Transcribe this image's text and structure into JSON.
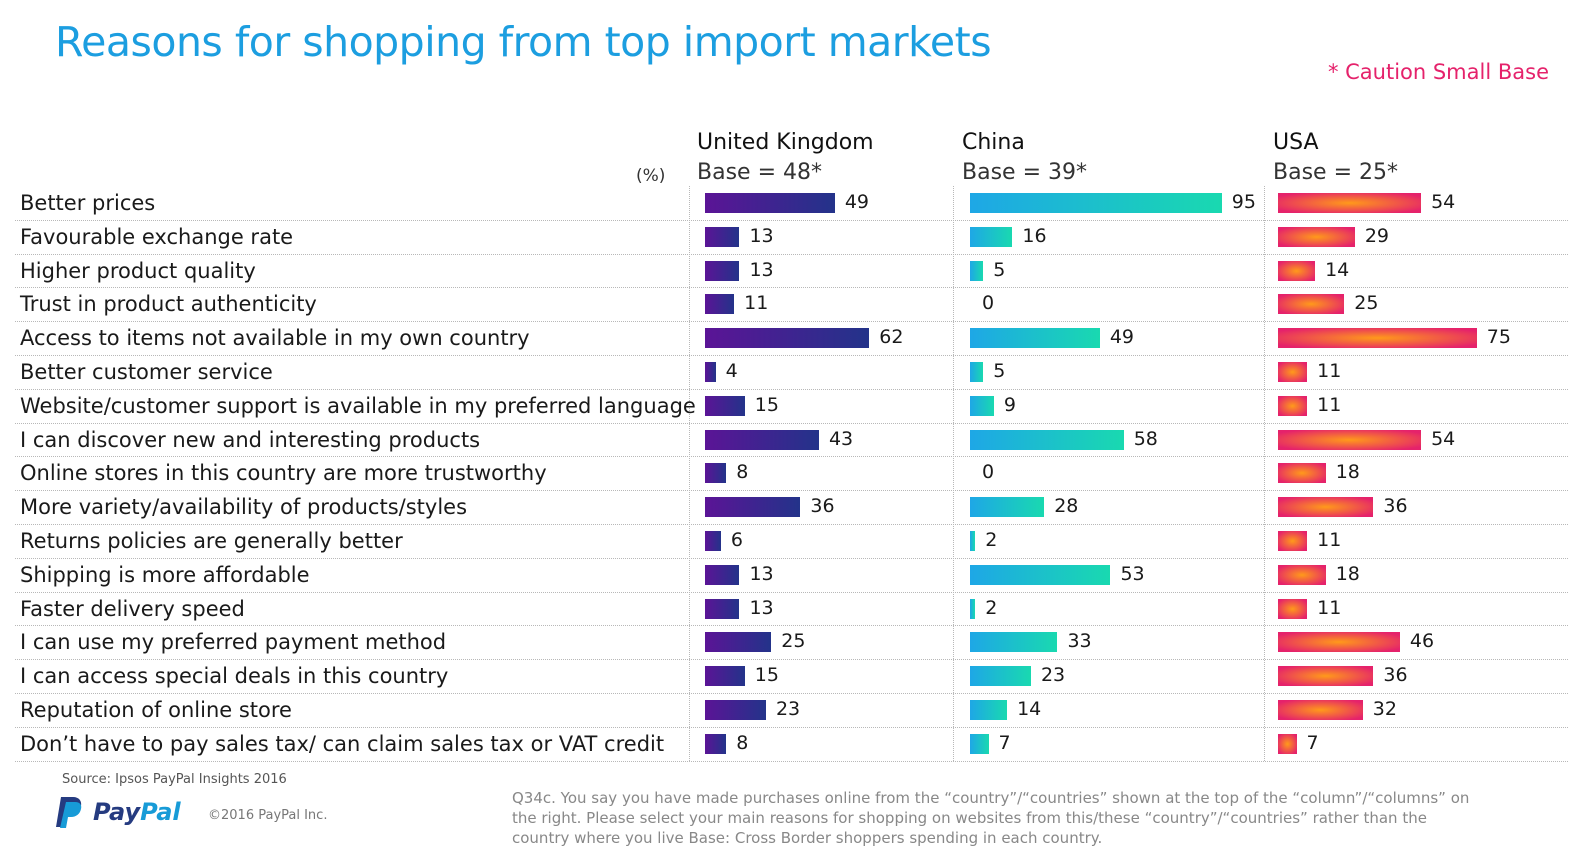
{
  "title": "Reasons for shopping from top import markets",
  "caution": "* Caution Small Base",
  "unit_label": "(%)",
  "source": "Source: Ipsos PayPal Insights 2016",
  "logo": {
    "part1": "Pay",
    "part2": "Pal"
  },
  "copyright": "©2016 PayPal Inc.",
  "footnote": "Q34c. You say you have made purchases online from the  “country”/“countries” shown at the top of the “column”/“columns” on the right. Please select your main reasons for shopping on websites from this/these “country”/“countries” rather than the country where you live Base: Cross Border shoppers spending in each country.",
  "colors": {
    "title": "#1c9ee0",
    "caution": "#e5226b",
    "uk": [
      "#5b1496",
      "#23338a"
    ],
    "china": [
      "#1ea7e6",
      "#19d9b0"
    ],
    "usa": [
      "#ff9a1a",
      "#e5226b"
    ]
  },
  "chart_data": {
    "type": "bar",
    "orientation": "horizontal",
    "unit": "(%)",
    "categories": [
      "Better prices",
      "Favourable exchange rate",
      "Higher product quality",
      "Trust in product authenticity",
      "Access to items not available in my own country",
      "Better customer service",
      "Website/customer support is available in my preferred language",
      "I can discover new and interesting products",
      "Online stores in this country are more trustworthy",
      "More variety/availability of products/styles",
      "Returns policies are generally better",
      "Shipping is more affordable",
      "Faster delivery speed",
      "I can use my preferred payment method",
      "I can access special deals in this country",
      "Reputation of online store",
      "Don’t have to pay sales tax/ can claim sales tax or VAT credit"
    ],
    "series": [
      {
        "name": "United Kingdom",
        "base": "Base = 48*",
        "values": [
          49,
          13,
          13,
          11,
          62,
          4,
          15,
          43,
          8,
          36,
          6,
          13,
          13,
          25,
          15,
          23,
          8
        ]
      },
      {
        "name": "China",
        "base": "Base = 39*",
        "values": [
          95,
          16,
          5,
          0,
          49,
          5,
          9,
          58,
          0,
          28,
          2,
          53,
          2,
          33,
          23,
          14,
          7
        ]
      },
      {
        "name": "USA",
        "base": "Base = 25*",
        "values": [
          54,
          29,
          14,
          25,
          75,
          11,
          11,
          54,
          18,
          36,
          11,
          18,
          11,
          46,
          36,
          32,
          7
        ]
      }
    ]
  }
}
